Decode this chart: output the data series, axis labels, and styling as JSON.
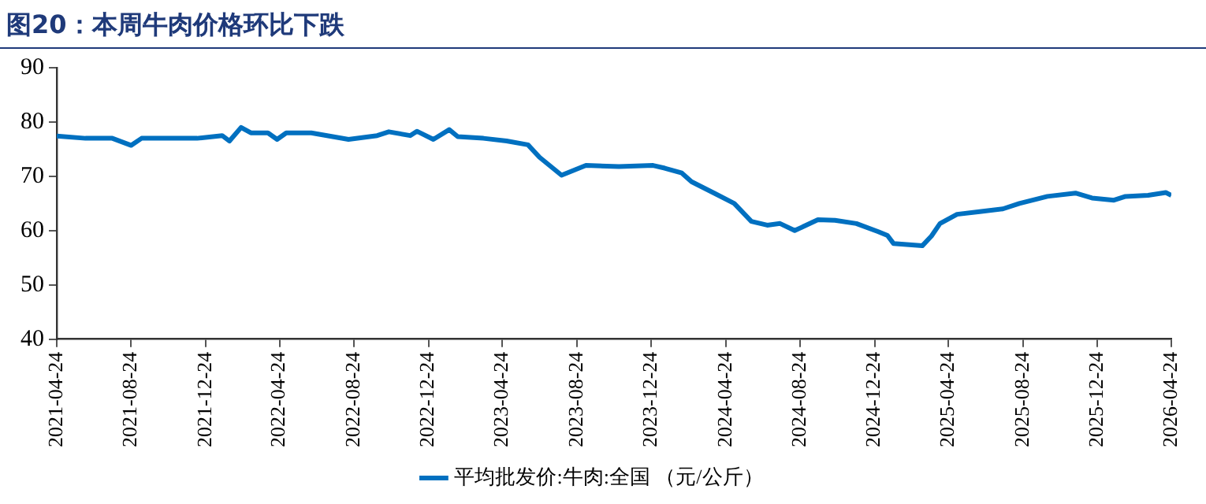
{
  "chart_data": {
    "type": "line",
    "title": "图20：本周牛肉价格环比下跌",
    "x": [
      "2021-04-24",
      "2021-06-10",
      "2021-07-24",
      "2021-08-24",
      "2021-09-10",
      "2021-10-20",
      "2021-12-10",
      "2022-01-20",
      "2022-02-01",
      "2022-02-20",
      "2022-03-08",
      "2022-04-05",
      "2022-04-20",
      "2022-05-05",
      "2022-06-15",
      "2022-08-15",
      "2022-10-01",
      "2022-10-20",
      "2022-11-24",
      "2022-12-05",
      "2023-01-01",
      "2023-01-27",
      "2023-02-10",
      "2023-03-24",
      "2023-05-01",
      "2023-06-05",
      "2023-06-24",
      "2023-07-30",
      "2023-09-08",
      "2023-11-01",
      "2023-12-27",
      "2024-01-15",
      "2024-02-12",
      "2024-02-28",
      "2024-04-05",
      "2024-05-08",
      "2024-06-05",
      "2024-07-01",
      "2024-07-22",
      "2024-08-15",
      "2024-09-22",
      "2024-10-20",
      "2024-11-24",
      "2024-12-30",
      "2025-01-14",
      "2025-01-24",
      "2025-03-12",
      "2025-03-27",
      "2025-04-10",
      "2025-05-08",
      "2025-06-14",
      "2025-07-22",
      "2025-08-18",
      "2025-10-03",
      "2025-11-18",
      "2025-12-15",
      "2026-01-20",
      "2026-02-08",
      "2026-03-17",
      "2026-04-15",
      "2026-04-24"
    ],
    "series": [
      {
        "name": "平均批发价:牛肉:全国 （元/公斤）",
        "color": "#0070c0",
        "values": [
          77.4,
          77,
          77,
          75.7,
          77,
          77,
          77,
          77.5,
          76.5,
          79,
          78,
          78,
          76.8,
          78,
          78,
          76.8,
          77.5,
          78.2,
          77.5,
          78.3,
          76.8,
          78.6,
          77.3,
          77,
          76.5,
          75.8,
          73.5,
          70.2,
          72,
          71.8,
          72,
          71.5,
          70.6,
          69,
          66.9,
          65,
          61.7,
          61,
          61.3,
          60,
          62,
          61.9,
          61.3,
          59.8,
          59.1,
          57.6,
          57.2,
          59,
          61.3,
          63,
          63.5,
          64,
          65,
          66.3,
          66.9,
          66,
          65.6,
          66.3,
          66.5,
          67,
          66.5
        ]
      }
    ],
    "ylim": [
      40,
      90
    ],
    "yticks": [
      40,
      50,
      60,
      70,
      80,
      90
    ],
    "xlim": [
      "2021-04-24",
      "2026-04-24"
    ],
    "xticks": [
      "2021-04-24",
      "2021-08-24",
      "2021-12-24",
      "2022-04-24",
      "2022-08-24",
      "2022-12-24",
      "2023-04-24",
      "2023-08-24",
      "2023-12-24",
      "2024-04-24",
      "2024-08-24",
      "2024-12-24",
      "2025-04-24",
      "2025-08-24",
      "2025-12-24",
      "2026-04-24"
    ],
    "legend": "bottom",
    "grid": false,
    "marker": "none",
    "line_style": "solid"
  }
}
